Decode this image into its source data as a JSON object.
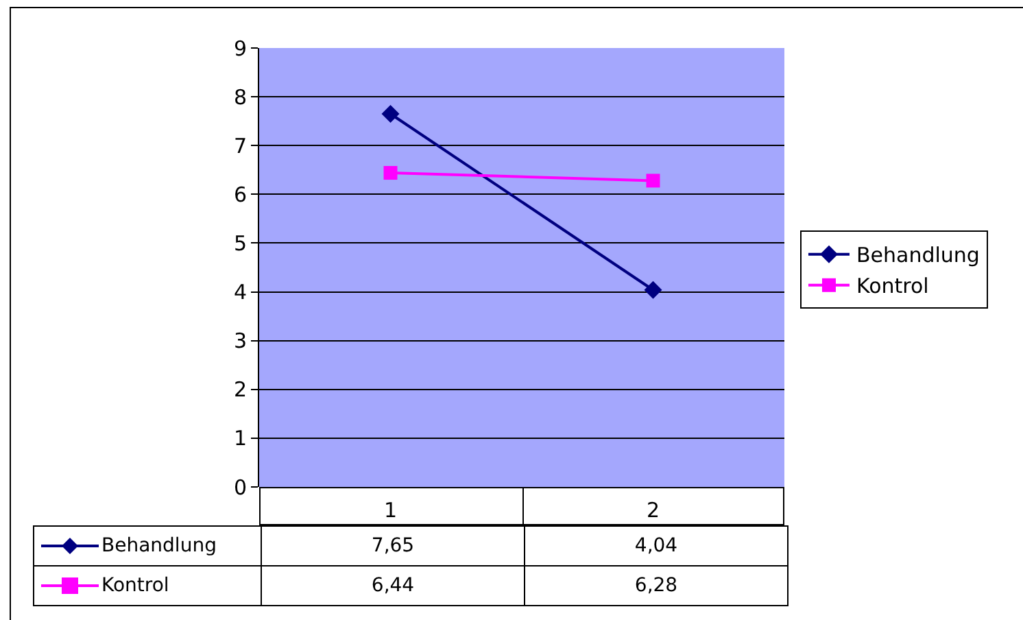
{
  "chart_data": {
    "type": "line",
    "categories": [
      "1",
      "2"
    ],
    "series": [
      {
        "name": "Behandlung",
        "color": "#000080",
        "marker": "diamond",
        "values": [
          7.65,
          4.04
        ],
        "value_labels": [
          "7,65",
          "4,04"
        ]
      },
      {
        "name": "Kontrol",
        "color": "#ff00ff",
        "marker": "square",
        "values": [
          6.44,
          6.28
        ],
        "value_labels": [
          "6,44",
          "6,28"
        ]
      }
    ],
    "ylim": [
      0,
      9
    ],
    "yticks": [
      0,
      1,
      2,
      3,
      4,
      5,
      6,
      7,
      8,
      9
    ],
    "grid": "y",
    "legend": "right",
    "line_style": "solid"
  }
}
